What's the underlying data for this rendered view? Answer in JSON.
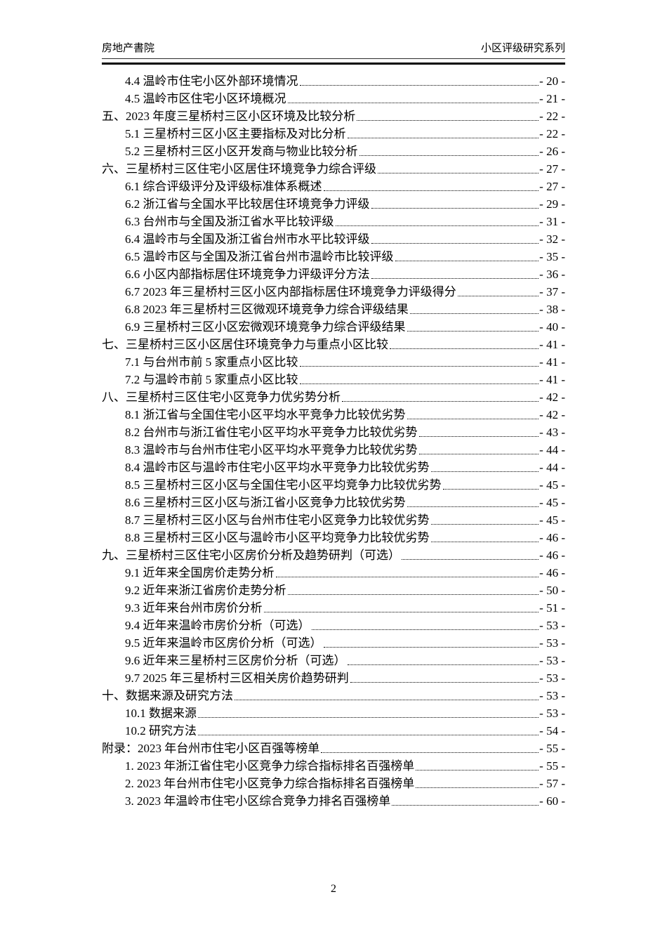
{
  "header": {
    "left_text": "房地产書院",
    "right_text": "小区评级研究系列"
  },
  "colors": {
    "text": "#000000",
    "rule": "#000000",
    "background": "#ffffff"
  },
  "toc": {
    "items": [
      {
        "level": 2,
        "label": "4.4 温岭市住宅小区外部环境情况",
        "page": "- 20 -"
      },
      {
        "level": 2,
        "label": "4.5 温岭市区住宅小区环境概况",
        "page": "- 21 -"
      },
      {
        "level": 1,
        "label": "五、2023 年度三星桥村三区小区环境及比较分析",
        "page": "- 22 -"
      },
      {
        "level": 2,
        "label": "5.1 三星桥村三区小区主要指标及对比分析",
        "page": "- 22 -"
      },
      {
        "level": 2,
        "label": "5.2 三星桥村三区小区开发商与物业比较分析",
        "page": "- 26 -"
      },
      {
        "level": 1,
        "label": "六、三星桥村三区住宅小区居住环境竞争力综合评级",
        "page": "- 27 -"
      },
      {
        "level": 2,
        "label": "6.1 综合评级评分及评级标准体系概述",
        "page": "- 27 -"
      },
      {
        "level": 2,
        "label": "6.2 浙江省与全国水平比较居住环境竞争力评级",
        "page": "- 29 -"
      },
      {
        "level": 2,
        "label": "6.3 台州市与全国及浙江省水平比较评级",
        "page": "- 31 -"
      },
      {
        "level": 2,
        "label": "6.4 温岭市与全国及浙江省台州市水平比较评级",
        "page": "- 32 -"
      },
      {
        "level": 2,
        "label": "6.5 温岭市区与全国及浙江省台州市温岭市比较评级",
        "page": "- 35 -"
      },
      {
        "level": 2,
        "label": "6.6 小区内部指标居住环境竞争力评级评分方法",
        "page": "- 36 -"
      },
      {
        "level": 2,
        "label": "6.7 2023 年三星桥村三区小区内部指标居住环境竞争力评级得分",
        "page": "- 37 -"
      },
      {
        "level": 2,
        "label": "6.8 2023 年三星桥村三区微观环境竞争力综合评级结果",
        "page": "- 38 -"
      },
      {
        "level": 2,
        "label": "6.9 三星桥村三区小区宏微观环境竞争力综合评级结果",
        "page": "- 40 -"
      },
      {
        "level": 1,
        "label": "七、三星桥村三区小区居住环境竞争力与重点小区比较",
        "page": "- 41 -"
      },
      {
        "level": 2,
        "label": "7.1 与台州市前 5 家重点小区比较",
        "page": "- 41 -"
      },
      {
        "level": 2,
        "label": "7.2 与温岭市前 5 家重点小区比较",
        "page": "- 41 -"
      },
      {
        "level": 1,
        "label": "八、三星桥村三区住宅小区竞争力优劣势分析",
        "page": "- 42 -"
      },
      {
        "level": 2,
        "label": "8.1 浙江省与全国住宅小区平均水平竞争力比较优劣势",
        "page": "- 42 -"
      },
      {
        "level": 2,
        "label": "8.2 台州市与浙江省住宅小区平均水平竞争力比较优劣势",
        "page": "- 43 -"
      },
      {
        "level": 2,
        "label": "8.3 温岭市与台州市住宅小区平均水平竞争力比较优劣势",
        "page": "- 44 -"
      },
      {
        "level": 2,
        "label": "8.4 温岭市区与温岭市住宅小区平均水平竞争力比较优劣势",
        "page": "- 44 -"
      },
      {
        "level": 2,
        "label": "8.5 三星桥村三区小区与全国住宅小区平均竞争力比较优劣势",
        "page": "- 45 -"
      },
      {
        "level": 2,
        "label": "8.6 三星桥村三区小区与浙江省小区竞争力比较优劣势",
        "page": "- 45 -"
      },
      {
        "level": 2,
        "label": "8.7 三星桥村三区小区与台州市住宅小区竞争力比较优劣势",
        "page": "- 45 -"
      },
      {
        "level": 2,
        "label": "8.8 三星桥村三区小区与温岭市小区平均竞争力比较优劣势",
        "page": "- 46 -"
      },
      {
        "level": 1,
        "label": "九、三星桥村三区住宅小区房价分析及趋势研判（可选）",
        "page": "- 46 -"
      },
      {
        "level": 2,
        "label": "9.1 近年来全国房价走势分析",
        "page": "- 46 -"
      },
      {
        "level": 2,
        "label": "9.2 近年来浙江省房价走势分析",
        "page": "- 50 -"
      },
      {
        "level": 2,
        "label": "9.3 近年来台州市房价分析",
        "page": "- 51 -"
      },
      {
        "level": 2,
        "label": "9.4 近年来温岭市房价分析（可选）",
        "page": "- 53 -"
      },
      {
        "level": 2,
        "label": "9.5 近年来温岭市区房价分析（可选）",
        "page": "- 53 -"
      },
      {
        "level": 2,
        "label": "9.6 近年来三星桥村三区房价分析（可选）",
        "page": "- 53 -"
      },
      {
        "level": 2,
        "label": "9.7 2025 年三星桥村三区相关房价趋势研判",
        "page": "- 53 -"
      },
      {
        "level": 1,
        "label": "十、数据来源及研究方法",
        "page": "- 53 -"
      },
      {
        "level": 2,
        "label": "10.1 数据来源",
        "page": "- 53 -"
      },
      {
        "level": 2,
        "label": "10.2 研究方法",
        "page": "- 54 -"
      },
      {
        "level": 1,
        "label": "附录：2023 年台州市住宅小区百强等榜单",
        "page": "- 55 -"
      },
      {
        "level": 2,
        "label": "1. 2023 年浙江省住宅小区竞争力综合指标排名百强榜单",
        "page": "- 55 -"
      },
      {
        "level": 2,
        "label": "2. 2023 年台州市住宅小区竞争力综合指标排名百强榜单",
        "page": "- 57 -"
      },
      {
        "level": 2,
        "label": "3. 2023 年温岭市住宅小区综合竞争力排名百强榜单",
        "page": "- 60 -"
      }
    ]
  },
  "footer": {
    "page_number": "2"
  }
}
